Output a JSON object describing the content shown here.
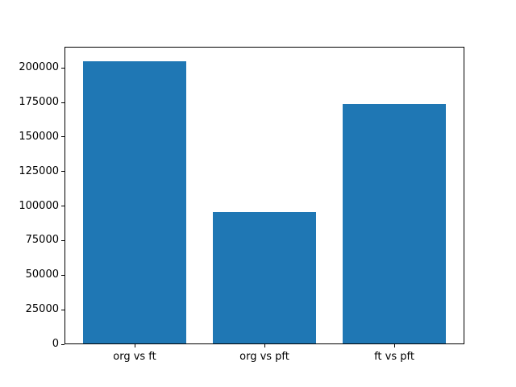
{
  "figure": {
    "background": "#ffffff",
    "spine_color": "#000000",
    "text_color": "#000000"
  },
  "chart_data": {
    "type": "bar",
    "categories": [
      "org vs ft",
      "org vs pft",
      "ft vs pft"
    ],
    "values": [
      205000,
      95500,
      173800
    ],
    "title": "",
    "xlabel": "",
    "ylabel": "",
    "bar_color": "#1f77b4",
    "ylim": [
      0,
      215250
    ],
    "yticks": [
      0,
      25000,
      50000,
      75000,
      100000,
      125000,
      150000,
      175000,
      200000
    ],
    "xlim": [
      -0.54,
      2.54
    ],
    "bar_width": 0.8,
    "grid": false,
    "legend": "none"
  }
}
